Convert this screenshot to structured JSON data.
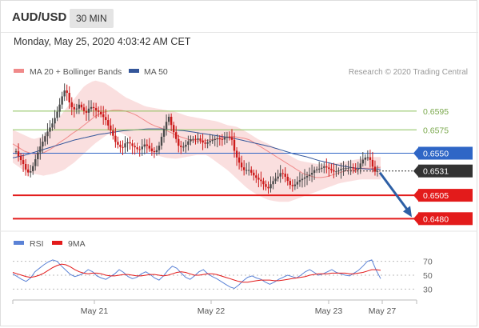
{
  "header": {
    "pair": "AUD/USD",
    "timeframe": "30 MIN",
    "timestamp": "Monday, May 25, 2020 4:03:42 AM CET"
  },
  "legend": {
    "ma20_label": "MA 20 + Bollinger Bands",
    "ma50_label": "MA 50",
    "credit": "Research © 2020 Trading Central",
    "rsi_label": "RSI",
    "rsi_ma_label": "9MA"
  },
  "colors": {
    "candle_up": "#4a4a4a",
    "candle_down": "#cc1a1a",
    "bollinger_fill": "#fadcdc",
    "ma20": "#f08a8a",
    "ma50": "#34569a",
    "resistance_green": "#8cc15a",
    "pivot_blue": "#2f66c6",
    "support_red": "#e31b1b",
    "arrow": "#2d5fa5",
    "rsi": "#5b82d6",
    "rsi_ma": "#e31b1b"
  },
  "chart_data": [
    {
      "type": "candlestick",
      "title": "AUD/USD",
      "timeframe": "30 MIN",
      "x_ticks": [
        "May 21",
        "May 22",
        "May 23",
        "May 27"
      ],
      "ylim": [
        0.647,
        0.663
      ],
      "current_price": 0.6531,
      "levels": [
        {
          "value": 0.6595,
          "label": "0.6595",
          "kind": "resistance"
        },
        {
          "value": 0.6575,
          "label": "0.6575",
          "kind": "resistance"
        },
        {
          "value": 0.655,
          "label": "0.6550",
          "kind": "pivot"
        },
        {
          "value": 0.6531,
          "label": "0.6531",
          "kind": "last"
        },
        {
          "value": 0.6505,
          "label": "0.6505",
          "kind": "support"
        },
        {
          "value": 0.648,
          "label": "0.6480",
          "kind": "support"
        }
      ],
      "close_path": [
        0.6552,
        0.6545,
        0.654,
        0.6532,
        0.6528,
        0.6535,
        0.6545,
        0.6555,
        0.6562,
        0.657,
        0.6576,
        0.6582,
        0.659,
        0.66,
        0.6612,
        0.662,
        0.6605,
        0.6598,
        0.6596,
        0.6602,
        0.6598,
        0.6592,
        0.6598,
        0.66,
        0.6596,
        0.6594,
        0.659,
        0.6586,
        0.6578,
        0.6571,
        0.6562,
        0.6558,
        0.6555,
        0.6561,
        0.6562,
        0.6558,
        0.6556,
        0.6553,
        0.6557,
        0.656,
        0.6556,
        0.6552,
        0.6551,
        0.6556,
        0.6569,
        0.658,
        0.659,
        0.6578,
        0.6568,
        0.6558,
        0.6556,
        0.6558,
        0.6563,
        0.6566,
        0.6564,
        0.6566,
        0.6562,
        0.656,
        0.6562,
        0.6564,
        0.6565,
        0.6566,
        0.6564,
        0.6567,
        0.6568,
        0.6566,
        0.655,
        0.6542,
        0.6535,
        0.6531,
        0.6533,
        0.6529,
        0.6525,
        0.6522,
        0.652,
        0.6515,
        0.6512,
        0.6518,
        0.6522,
        0.6525,
        0.653,
        0.6526,
        0.652,
        0.6514,
        0.6516,
        0.652,
        0.6522,
        0.6524,
        0.6526,
        0.6528,
        0.6532,
        0.6533,
        0.6534,
        0.6536,
        0.6534,
        0.6532,
        0.653,
        0.6531,
        0.6533,
        0.6534,
        0.6534,
        0.6535,
        0.6533,
        0.6532,
        0.654,
        0.6545,
        0.6546,
        0.6542,
        0.653,
        0.6531
      ],
      "ma20_path": [
        0.656,
        0.6556,
        0.6552,
        0.655,
        0.6549,
        0.655,
        0.6553,
        0.6557,
        0.6562,
        0.6566,
        0.6571,
        0.6575,
        0.658,
        0.6585,
        0.659,
        0.6593,
        0.6595,
        0.6596,
        0.6596,
        0.6595,
        0.6593,
        0.659,
        0.6586,
        0.6582,
        0.6579,
        0.6577,
        0.6574,
        0.6571,
        0.6568,
        0.6566,
        0.6564,
        0.6563,
        0.6563,
        0.6564,
        0.6565,
        0.6566,
        0.6567,
        0.6568,
        0.6567,
        0.6566,
        0.6564,
        0.656,
        0.6556,
        0.6552,
        0.6548,
        0.6544,
        0.654,
        0.6536,
        0.6532,
        0.6528,
        0.6526,
        0.6524,
        0.6524,
        0.6525,
        0.6527,
        0.6529,
        0.6531,
        0.6532,
        0.6533,
        0.6534,
        0.6534,
        0.6534,
        0.6535
      ],
      "ma50_path": [
        0.6545,
        0.6548,
        0.6552,
        0.6556,
        0.656,
        0.6564,
        0.6567,
        0.657,
        0.6572,
        0.6574,
        0.6575,
        0.6576,
        0.6576,
        0.6575,
        0.6574,
        0.6572,
        0.657,
        0.6568,
        0.6566,
        0.6563,
        0.656,
        0.6557,
        0.6553,
        0.6549,
        0.6546,
        0.6542,
        0.6539,
        0.6536,
        0.6534,
        0.6533,
        0.6533
      ],
      "bb_upper_path": [
        0.6575,
        0.657,
        0.6565,
        0.6568,
        0.658,
        0.6595,
        0.6608,
        0.6622,
        0.6628,
        0.6625,
        0.6618,
        0.661,
        0.6605,
        0.66,
        0.6598,
        0.6596,
        0.6594,
        0.659,
        0.6588,
        0.6586,
        0.6584,
        0.658,
        0.6578,
        0.6572,
        0.6565,
        0.656,
        0.6554,
        0.6548,
        0.6542,
        0.654,
        0.6538,
        0.6538,
        0.654,
        0.6542,
        0.6544,
        0.6546,
        0.6546
      ],
      "bb_lower_path": [
        0.654,
        0.6532,
        0.6528,
        0.6526,
        0.6528,
        0.6532,
        0.654,
        0.655,
        0.656,
        0.6568,
        0.6574,
        0.657,
        0.6562,
        0.6555,
        0.6548,
        0.6545,
        0.6544,
        0.6546,
        0.6548,
        0.6548,
        0.654,
        0.6532,
        0.6522,
        0.6512,
        0.6505,
        0.65,
        0.6498,
        0.6498,
        0.6502,
        0.6506,
        0.651,
        0.6514,
        0.6518,
        0.652,
        0.6522,
        0.6522,
        0.6522
      ],
      "forecast": {
        "from": 0.6531,
        "to": 0.648,
        "direction": "down"
      }
    },
    {
      "type": "line",
      "title": "RSI",
      "series": [
        {
          "name": "RSI",
          "values": [
            52,
            48,
            44,
            41,
            46,
            55,
            60,
            65,
            69,
            72,
            70,
            63,
            57,
            51,
            48,
            50,
            53,
            58,
            55,
            49,
            46,
            44,
            48,
            52,
            58,
            54,
            48,
            45,
            47,
            52,
            55,
            51,
            46,
            43,
            49,
            57,
            63,
            60,
            53,
            47,
            44,
            49,
            55,
            58,
            52,
            48,
            45,
            41,
            37,
            33,
            31,
            36,
            42,
            47,
            49,
            46,
            44,
            40,
            37,
            40,
            44,
            47,
            50,
            48,
            46,
            50,
            55,
            58,
            54,
            50,
            52,
            55,
            58,
            54,
            52,
            50,
            49,
            53,
            57,
            63,
            70,
            72,
            57,
            45
          ]
        },
        {
          "name": "9MA",
          "values": [
            54,
            52,
            50,
            48,
            47,
            48,
            50,
            53,
            57,
            61,
            64,
            66,
            65,
            62,
            58,
            55,
            53,
            52,
            53,
            53,
            52,
            50,
            49,
            49,
            50,
            51,
            51,
            50,
            49,
            49,
            50,
            51,
            51,
            50,
            49,
            50,
            52,
            54,
            55,
            54,
            52,
            50,
            50,
            51,
            52,
            52,
            51,
            49,
            47,
            45,
            43,
            41,
            40,
            40,
            41,
            42,
            43,
            43,
            43,
            42,
            42,
            43,
            44,
            45,
            46,
            47,
            48,
            50,
            51,
            52,
            52,
            52,
            53,
            53,
            53,
            53,
            52,
            52,
            53,
            54,
            56,
            58,
            58,
            57
          ]
        }
      ],
      "ylim": [
        20,
        80
      ],
      "y_ticks": [
        "70",
        "50",
        "30"
      ]
    }
  ]
}
